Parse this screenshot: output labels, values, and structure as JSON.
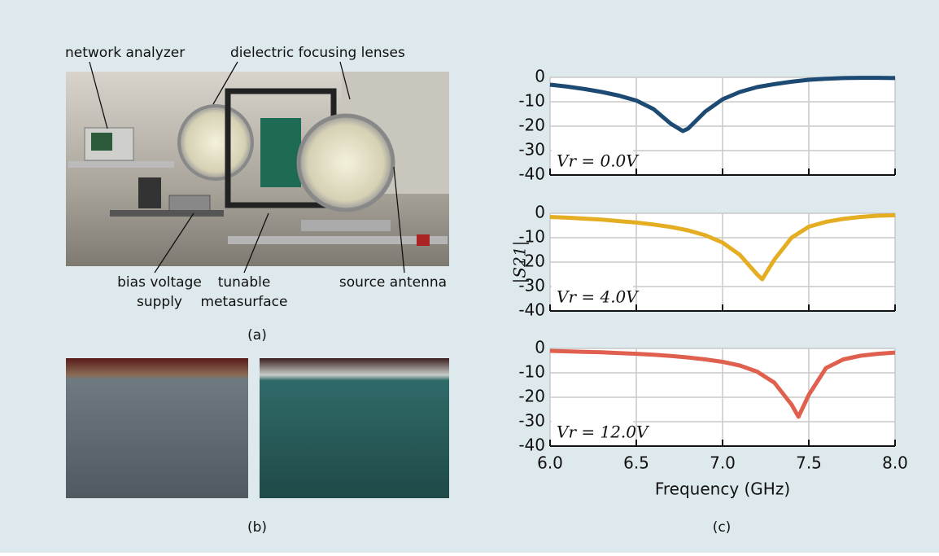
{
  "figure": {
    "photo_labels": [
      {
        "lines": [
          "network analyzer"
        ]
      },
      {
        "lines": [
          "dielectric focusing lenses"
        ]
      },
      {
        "lines": [
          "bias voltage",
          "supply"
        ]
      },
      {
        "lines": [
          "tunable",
          "metasurface"
        ]
      },
      {
        "lines": [
          "source antenna"
        ]
      }
    ],
    "panel_labels": [
      "(a)",
      "(b)",
      "(c)"
    ]
  },
  "chart_data": [
    {
      "type": "line",
      "annotation": "Vr = 0.0V",
      "x": [
        6.0,
        6.1,
        6.2,
        6.3,
        6.4,
        6.5,
        6.6,
        6.7,
        6.77,
        6.8,
        6.9,
        7.0,
        7.1,
        7.2,
        7.3,
        7.4,
        7.5,
        7.6,
        7.7,
        7.8,
        7.9,
        8.0
      ],
      "series": [
        {
          "color": "#1d4a72",
          "values": [
            -3,
            -3.8,
            -4.8,
            -6,
            -7.5,
            -9.5,
            -13,
            -19,
            -22,
            -21,
            -14,
            -9,
            -6,
            -4,
            -2.8,
            -1.8,
            -1,
            -0.6,
            -0.3,
            -0.2,
            -0.2,
            -0.3
          ]
        }
      ],
      "xlim": [
        6,
        8
      ],
      "ylim": [
        -40,
        0
      ],
      "xticks": [
        6,
        6.5,
        7,
        7.5,
        8
      ],
      "yticks": [
        0,
        -10,
        -20,
        -30,
        -40
      ],
      "grid": true
    },
    {
      "type": "line",
      "annotation": "Vr = 4.0V",
      "y_label": "|S21|",
      "x": [
        6.0,
        6.1,
        6.2,
        6.3,
        6.4,
        6.5,
        6.6,
        6.7,
        6.8,
        6.9,
        7.0,
        7.1,
        7.2,
        7.23,
        7.3,
        7.4,
        7.5,
        7.6,
        7.7,
        7.8,
        7.9,
        8.0
      ],
      "series": [
        {
          "color": "#e4ad22",
          "values": [
            -1.5,
            -1.8,
            -2.2,
            -2.6,
            -3.2,
            -3.8,
            -4.6,
            -5.6,
            -7,
            -9,
            -12,
            -17,
            -25,
            -27,
            -19,
            -10,
            -5.5,
            -3.5,
            -2.3,
            -1.5,
            -1,
            -0.8
          ]
        }
      ],
      "xlim": [
        6,
        8
      ],
      "ylim": [
        -40,
        0
      ],
      "xticks": [
        6,
        6.5,
        7,
        7.5,
        8
      ],
      "yticks": [
        0,
        -10,
        -20,
        -30,
        -40
      ],
      "grid": true
    },
    {
      "type": "line",
      "annotation": "Vr = 12.0V",
      "x_label": "Frequency (GHz)",
      "x": [
        6.0,
        6.1,
        6.2,
        6.3,
        6.4,
        6.5,
        6.6,
        6.7,
        6.8,
        6.9,
        7.0,
        7.1,
        7.2,
        7.3,
        7.4,
        7.44,
        7.5,
        7.6,
        7.7,
        7.8,
        7.9,
        8.0
      ],
      "series": [
        {
          "color": "#e0604f",
          "values": [
            -1,
            -1.2,
            -1.4,
            -1.6,
            -1.9,
            -2.2,
            -2.6,
            -3.1,
            -3.7,
            -4.5,
            -5.5,
            -7,
            -9.5,
            -14,
            -23,
            -28,
            -19,
            -8,
            -4.5,
            -3,
            -2.2,
            -1.7
          ]
        }
      ],
      "xlim": [
        6,
        8
      ],
      "ylim": [
        -40,
        0
      ],
      "xticks": [
        {
          "value": 6,
          "label": "6.0"
        },
        {
          "value": 6.5,
          "label": "6.5"
        },
        {
          "value": 7,
          "label": "7.0"
        },
        {
          "value": 7.5,
          "label": "7.5"
        },
        {
          "value": 8,
          "label": "8.0"
        }
      ],
      "yticks": [
        0,
        -10,
        -20,
        -30,
        -40
      ],
      "grid": true
    }
  ]
}
